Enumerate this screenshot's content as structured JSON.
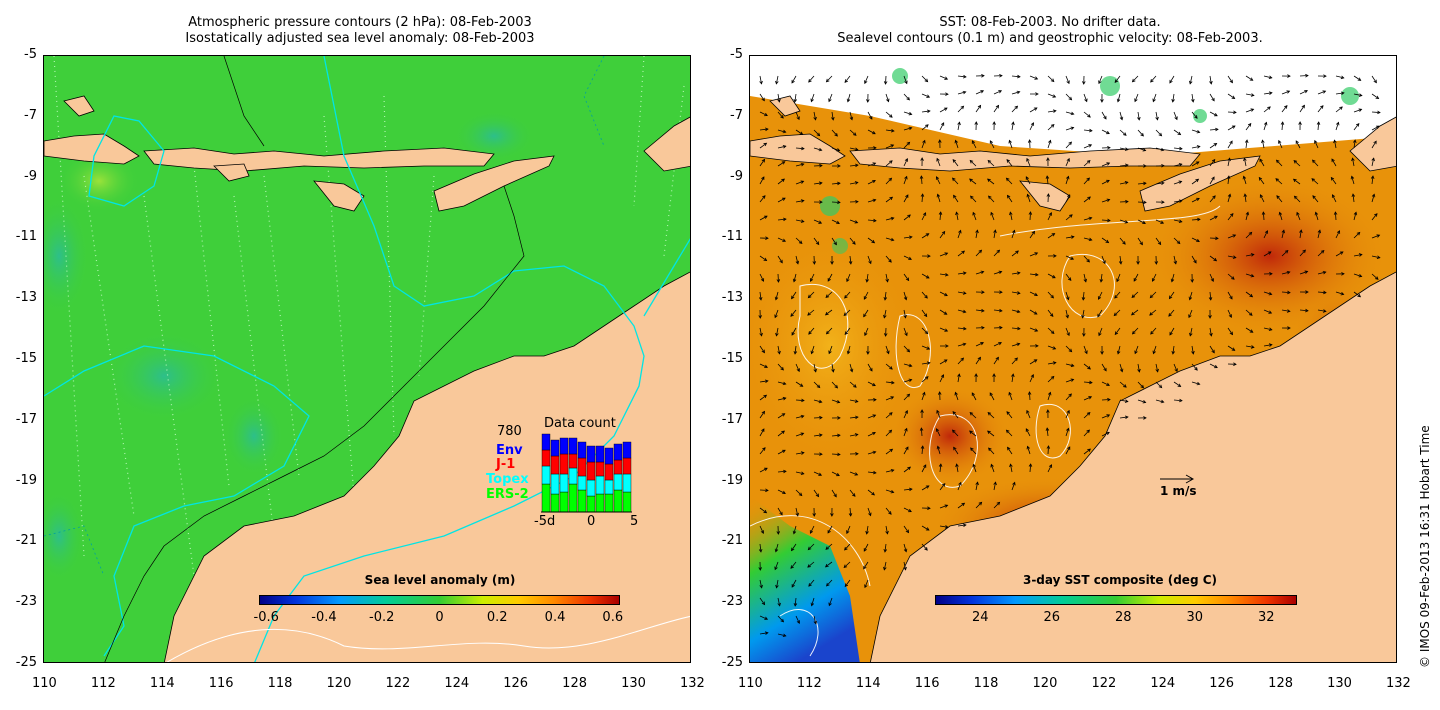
{
  "left_panel": {
    "title_line1": "Atmospheric pressure contours (2 hPa): 08-Feb-2003",
    "title_line2": "Isostatically adjusted sea level anomaly: 08-Feb-2003",
    "colorbar": {
      "title": "Sea level anomaly (m)",
      "ticks": [
        "-0.6",
        "-0.4",
        "-0.2",
        "0",
        "0.2",
        "0.4",
        "0.6"
      ]
    },
    "data_count": {
      "title": "Data count",
      "max_label": "780",
      "series": [
        {
          "name": "Env",
          "color": "#0000ff"
        },
        {
          "name": "J-1",
          "color": "#ff0000"
        },
        {
          "name": "Topex",
          "color": "#00ffff"
        },
        {
          "name": "ERS-2",
          "color": "#00ff00"
        }
      ],
      "x_ticks": [
        "-5d",
        "0",
        "5"
      ]
    }
  },
  "right_panel": {
    "title_line1": "SST: 08-Feb-2003. No drifter data.",
    "title_line2": "Sealevel contours (0.1 m) and geostrophic velocity: 08-Feb-2003.",
    "colorbar": {
      "title": "3-day SST composite (deg C)",
      "ticks": [
        "24",
        "26",
        "28",
        "30",
        "32"
      ]
    },
    "velocity_scale": "1 m/s"
  },
  "axes": {
    "x_ticks": [
      "110",
      "112",
      "114",
      "116",
      "118",
      "120",
      "122",
      "124",
      "126",
      "128",
      "130",
      "132"
    ],
    "y_ticks": [
      "-5",
      "-7",
      "-9",
      "-11",
      "-13",
      "-15",
      "-17",
      "-19",
      "-21",
      "-23",
      "-25"
    ]
  },
  "credit": "© IMOS 09-Feb-2013 16:31 Hobart Time",
  "colors": {
    "land": "#f9c89a",
    "sea_left": "#3fcf3a",
    "sea_right": "#e8920a"
  }
}
